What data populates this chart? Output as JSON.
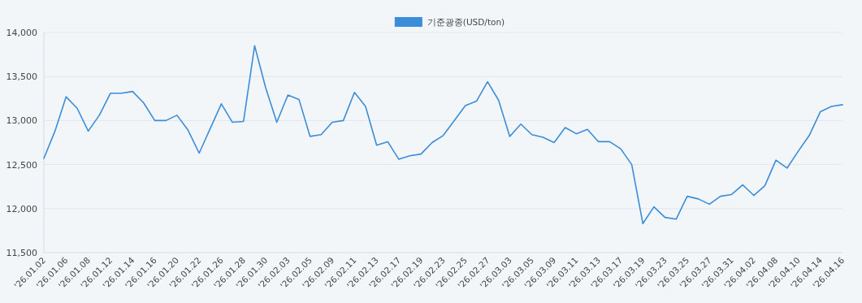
{
  "chart_data": {
    "type": "line",
    "categories": [
      "'26.01.02",
      null,
      "'26.01.06",
      null,
      "'26.01.08",
      null,
      "'26.01.12",
      null,
      "'26.01.14",
      null,
      "'26.01.16",
      null,
      "'26.01.20",
      null,
      "'26.01.22",
      null,
      "'26.01.26",
      null,
      "'26.01.28",
      null,
      "'26.01.30",
      null,
      "'26.02.03",
      null,
      "'26.02.05",
      null,
      "'26.02.09",
      null,
      "'26.02.11",
      null,
      "'26.02.13",
      null,
      "'26.02.17",
      null,
      "'26.02.19",
      null,
      "'26.02.23",
      null,
      "'26.02.25",
      null,
      "'26.02.27",
      null,
      "'26.03.03",
      null,
      "'26.03.05",
      null,
      "'26.03.09",
      null,
      "'26.03.11",
      null,
      "'26.03.13",
      null,
      "'26.03.17",
      null,
      "'26.03.19",
      null,
      "'26.03.23",
      null,
      "'26.03.25",
      null,
      "'26.03.27",
      null,
      "'26.03.31",
      null,
      "'26.04.02",
      null,
      "'26.04.08",
      null,
      "'26.04.10",
      null,
      "'26.04.14",
      null,
      "'26.04.16"
    ],
    "series": [
      {
        "name": "기준광종(USD/ton)",
        "color": "#3a8dd8",
        "values": [
          12570,
          12880,
          13270,
          13140,
          12880,
          13060,
          13310,
          13310,
          13330,
          13200,
          13000,
          13000,
          13060,
          12890,
          12630,
          12910,
          13190,
          12980,
          12990,
          13850,
          13370,
          12980,
          13290,
          13240,
          12820,
          12840,
          12980,
          13000,
          13320,
          13160,
          12720,
          12760,
          12560,
          12600,
          12620,
          12750,
          12830,
          13000,
          13170,
          13220,
          13440,
          13230,
          12820,
          12960,
          12840,
          12810,
          12750,
          12920,
          12850,
          12900,
          12760,
          12760,
          12680,
          12500,
          11830,
          12020,
          11900,
          11880,
          12140,
          12110,
          12050,
          12140,
          12160,
          12270,
          12150,
          12260,
          12550,
          12460,
          12650,
          12830,
          13100,
          13160,
          13180
        ]
      }
    ],
    "ylim": [
      11500,
      14000
    ],
    "yticks": [
      {
        "value": 11500,
        "label": "11,500"
      },
      {
        "value": 12000,
        "label": "12,000"
      },
      {
        "value": 12500,
        "label": "12,500"
      },
      {
        "value": 13000,
        "label": "13,000"
      },
      {
        "value": 13500,
        "label": "13,500"
      },
      {
        "value": 14000,
        "label": "14,000"
      }
    ],
    "grid": "y",
    "legend": "top",
    "marker": "none",
    "line_style": "solid"
  }
}
